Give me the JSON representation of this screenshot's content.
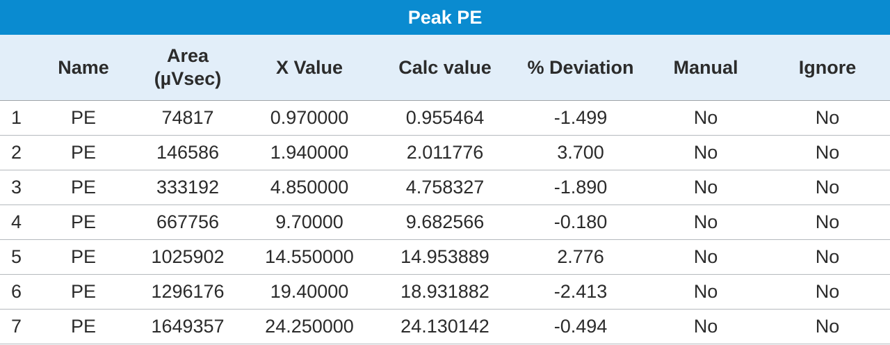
{
  "table": {
    "title": "Peak PE",
    "headers": {
      "index": "",
      "name": "Name",
      "area_line1": "Area",
      "area_line2": "(µVsec)",
      "x_value": "X Value",
      "calc_value": "Calc value",
      "deviation": "% Deviation",
      "manual": "Manual",
      "ignore": "Ignore"
    },
    "rows": [
      {
        "index": "1",
        "name": "PE",
        "area": "74817",
        "x_value": "0.970000",
        "calc_value": "0.955464",
        "deviation": "-1.499",
        "manual": "No",
        "ignore": "No"
      },
      {
        "index": "2",
        "name": "PE",
        "area": "146586",
        "x_value": "1.940000",
        "calc_value": "2.011776",
        "deviation": "3.700",
        "manual": "No",
        "ignore": "No"
      },
      {
        "index": "3",
        "name": "PE",
        "area": "333192",
        "x_value": "4.850000",
        "calc_value": "4.758327",
        "deviation": "-1.890",
        "manual": "No",
        "ignore": "No"
      },
      {
        "index": "4",
        "name": "PE",
        "area": "667756",
        "x_value": "9.70000",
        "calc_value": "9.682566",
        "deviation": "-0.180",
        "manual": "No",
        "ignore": "No"
      },
      {
        "index": "5",
        "name": "PE",
        "area": "1025902",
        "x_value": "14.550000",
        "calc_value": "14.953889",
        "deviation": "2.776",
        "manual": "No",
        "ignore": "No"
      },
      {
        "index": "6",
        "name": "PE",
        "area": "1296176",
        "x_value": "19.40000",
        "calc_value": "18.931882",
        "deviation": "-2.413",
        "manual": "No",
        "ignore": "No"
      },
      {
        "index": "7",
        "name": "PE",
        "area": "1649357",
        "x_value": "24.250000",
        "calc_value": "24.130142",
        "deviation": "-0.494",
        "manual": "No",
        "ignore": "No"
      }
    ]
  }
}
